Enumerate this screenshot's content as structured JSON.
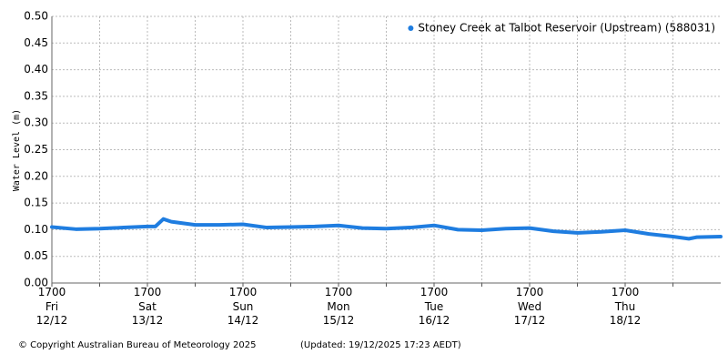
{
  "chart_data": {
    "type": "line",
    "y_label": "Water Level (m)",
    "x": [
      "12/12 17:00",
      "12/12 23:00",
      "13/12 05:00",
      "13/12 11:00",
      "13/12 17:00",
      "13/12 19:00",
      "13/12 21:00",
      "13/12 23:00",
      "14/12 05:00",
      "14/12 11:00",
      "14/12 17:00",
      "14/12 23:00",
      "15/12 05:00",
      "15/12 11:00",
      "15/12 17:00",
      "15/12 23:00",
      "16/12 05:00",
      "16/12 11:00",
      "16/12 17:00",
      "16/12 23:00",
      "17/12 05:00",
      "17/12 11:00",
      "17/12 17:00",
      "17/12 23:00",
      "18/12 05:00",
      "18/12 11:00",
      "18/12 17:00",
      "18/12 23:00",
      "19/12 05:00",
      "19/12 09:00",
      "19/12 11:00",
      "19/12 17:00"
    ],
    "series": [
      {
        "name": "Stoney Creek at Talbot Reservoir (Upstream) (588031)",
        "color": "#1f7de0",
        "values": [
          0.105,
          0.101,
          0.102,
          0.104,
          0.106,
          0.106,
          0.12,
          0.115,
          0.109,
          0.109,
          0.11,
          0.104,
          0.105,
          0.106,
          0.108,
          0.103,
          0.102,
          0.104,
          0.108,
          0.1,
          0.099,
          0.102,
          0.103,
          0.097,
          0.094,
          0.096,
          0.099,
          0.092,
          0.087,
          0.083,
          0.086,
          0.087
        ]
      }
    ],
    "xlim": [
      "12/12 17:00",
      "19/12 17:00"
    ],
    "xticks": [
      {
        "value": "12/12 17:00",
        "label": "1700\nFri\n12/12"
      },
      "13/12 05:00",
      {
        "value": "13/12 17:00",
        "label": "1700\nSat\n13/12"
      },
      "14/12 05:00",
      {
        "value": "14/12 17:00",
        "label": "1700\nSun\n14/12"
      },
      "15/12 05:00",
      {
        "value": "15/12 17:00",
        "label": "1700\nMon\n15/12"
      },
      "16/12 05:00",
      {
        "value": "16/12 17:00",
        "label": "1700\nTue\n16/12"
      },
      "17/12 05:00",
      {
        "value": "17/12 17:00",
        "label": "1700\nWed\n17/12"
      },
      "18/12 05:00",
      {
        "value": "18/12 17:00",
        "label": "1700\nThu\n18/12"
      },
      "19/12 05:00"
    ],
    "ylim": [
      0,
      0.5
    ],
    "yticks": [
      {
        "value": 0,
        "label": "0.00"
      },
      {
        "value": 0.05,
        "label": "0.05"
      },
      {
        "value": 0.1,
        "label": "0.10"
      },
      {
        "value": 0.15,
        "label": "0.15"
      },
      {
        "value": 0.2,
        "label": "0.20"
      },
      {
        "value": 0.25,
        "label": "0.25"
      },
      {
        "value": 0.3,
        "label": "0.30"
      },
      {
        "value": 0.35,
        "label": "0.35"
      },
      {
        "value": 0.4,
        "label": "0.40"
      },
      {
        "value": 0.45,
        "label": "0.45"
      },
      {
        "value": 0.5,
        "label": "0.50"
      }
    ],
    "grid": true,
    "legend": "upper right",
    "copyright": "© Copyright Australian Bureau of Meteorology 2025",
    "updated": "(Updated: 19/12/2025 17:23 AEDT)"
  }
}
